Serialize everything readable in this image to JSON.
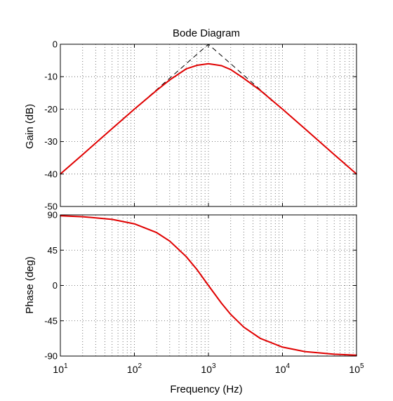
{
  "chart_data": {
    "type": "line",
    "title": "Bode Diagram",
    "xlabel": "Frequency  (Hz)",
    "x_scale": "log",
    "xlim": [
      10,
      100000
    ],
    "x_ticks": [
      {
        "value": 10,
        "base": "10",
        "exp": "1"
      },
      {
        "value": 100,
        "base": "10",
        "exp": "2"
      },
      {
        "value": 1000,
        "base": "10",
        "exp": "3"
      },
      {
        "value": 10000,
        "base": "10",
        "exp": "4"
      },
      {
        "value": 100000,
        "base": "10",
        "exp": "5"
      }
    ],
    "grid": true,
    "grid_style": "dotted",
    "series_color": "#e00000",
    "asymptote_color": "#000000",
    "panels": [
      {
        "name": "gain",
        "ylabel": "Gain (dB)",
        "ylim": [
          -50,
          0
        ],
        "y_ticks": [
          0,
          -10,
          -20,
          -30,
          -40,
          -50
        ],
        "y_tick_labels": [
          "0",
          "-10",
          "-20",
          "-30",
          "-40",
          "-50"
        ],
        "series": [
          {
            "x": [
              10,
              20,
              50,
              100,
              200,
              300,
              500,
              700,
              1000,
              1500,
              2000,
              3000,
              5000,
              10000,
              20000,
              50000,
              100000
            ],
            "y": [
              -40.0,
              -34.0,
              -26.0,
              -20.0,
              -14.2,
              -11.0,
              -7.6,
              -6.5,
              -6.0,
              -6.6,
              -7.8,
              -10.5,
              -14.2,
              -20.0,
              -26.0,
              -34.0,
              -40.0
            ]
          }
        ],
        "asymptotes": [
          {
            "x": [
              10,
              1000,
              100000
            ],
            "y": [
              -40,
              0,
              -40
            ]
          }
        ]
      },
      {
        "name": "phase",
        "ylabel": "Phase (deg)",
        "ylim": [
          -90,
          90
        ],
        "y_ticks": [
          90,
          45,
          0,
          -45,
          -90
        ],
        "y_tick_labels": [
          "90",
          "45",
          "0",
          "-45",
          "-90"
        ],
        "series": [
          {
            "x": [
              10,
              20,
              50,
              100,
              200,
              300,
              500,
              700,
              1000,
              1500,
              2000,
              3000,
              5000,
              10000,
              20000,
              50000,
              100000
            ],
            "y": [
              88.9,
              87.7,
              84.3,
              78.6,
              67.4,
              56.6,
              36.9,
              20.3,
              0.0,
              -22.6,
              -36.9,
              -53.1,
              -67.4,
              -78.6,
              -84.3,
              -87.7,
              -88.9
            ]
          }
        ],
        "asymptotes": [
          {
            "x": [
              10,
              100000
            ],
            "y": [
              90,
              90
            ]
          },
          {
            "x": [
              10,
              100000
            ],
            "y": [
              -90,
              -90
            ]
          }
        ]
      }
    ]
  }
}
